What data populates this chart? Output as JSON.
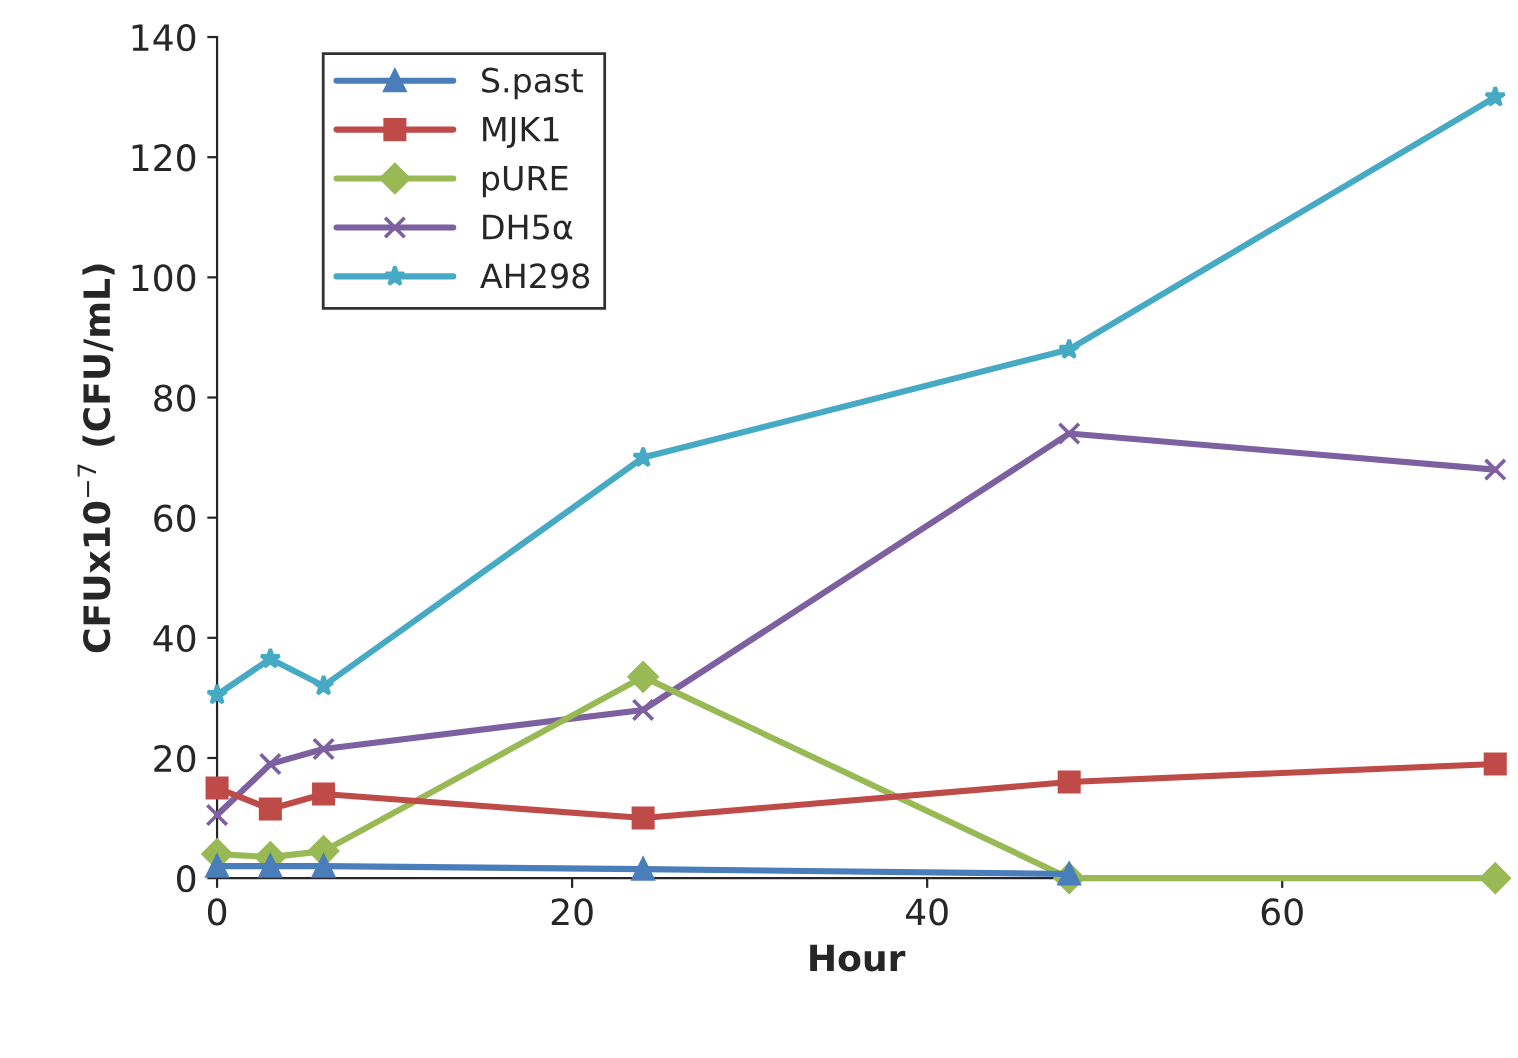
{
  "chart_data": {
    "type": "line",
    "xlabel": "Hour",
    "ylabel": "CFUx10$^{−7}$ (CFU/mL)",
    "x": [
      0,
      3,
      6,
      24,
      48,
      72
    ],
    "series": [
      {
        "name": "S.past",
        "color": "#4a7ebb",
        "marker": "triangle",
        "values": [
          2,
          2,
          2,
          1.5,
          0.7,
          null
        ]
      },
      {
        "name": "MJK1",
        "color": "#be4b48",
        "marker": "square",
        "values": [
          15,
          11.5,
          14,
          10,
          16,
          19
        ]
      },
      {
        "name": "pURE",
        "color": "#98b954",
        "marker": "diamond",
        "values": [
          4,
          3.5,
          4.5,
          33.5,
          0,
          0
        ]
      },
      {
        "name": "DH5α",
        "color": "#7d60a0",
        "marker": "cross",
        "values": [
          10.5,
          19,
          21.5,
          28,
          74,
          68
        ]
      },
      {
        "name": "AH298",
        "color": "#46aac5",
        "marker": "star",
        "values": [
          30.5,
          36.5,
          32,
          70,
          88,
          130
        ]
      }
    ],
    "xlim": [
      0,
      72
    ],
    "xticks": [
      0,
      20,
      40,
      60
    ],
    "ylim": [
      0,
      140
    ],
    "yticks": [
      0,
      20,
      40,
      60,
      80,
      100,
      120,
      140
    ],
    "grid": false,
    "legend": "top left",
    "line_style": "solid"
  }
}
